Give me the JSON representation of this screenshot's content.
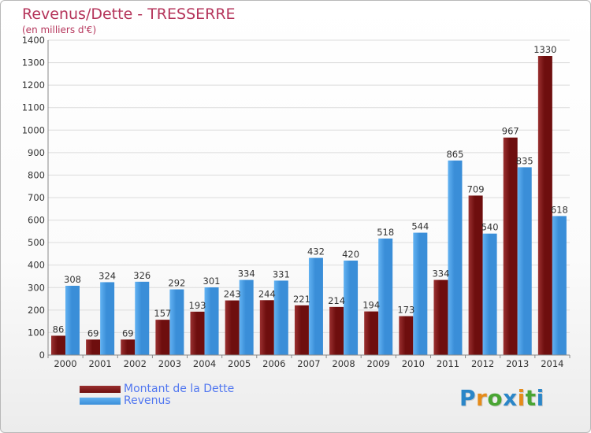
{
  "header": {
    "title": "Revenus/Dette - TRESSERRE",
    "subtitle": "(en milliers d'€)"
  },
  "colors": {
    "debt": "#6e0e0e",
    "debt_light": "#9a3030",
    "revenue": "#3a8ed8",
    "revenue_light": "#62b2f2",
    "title": "#b5355b",
    "legend_text": "#5177f0",
    "grid": "#dcdcdc",
    "axis_text": "#333333"
  },
  "chart_data": {
    "type": "bar",
    "title": "Revenus/Dette - TRESSERRE",
    "ylabel": "(en milliers d'€)",
    "xlabel": "",
    "ylim": [
      0,
      1400
    ],
    "ytick_step": 100,
    "yticks": [
      "0",
      "100",
      "200",
      "300",
      "400",
      "500",
      "600",
      "700",
      "800",
      "900",
      "1000",
      "1100",
      "1200",
      "1300",
      "1400"
    ],
    "grid": true,
    "legend_position": "bottom-left",
    "categories": [
      "2000",
      "2001",
      "2002",
      "2003",
      "2004",
      "2005",
      "2006",
      "2007",
      "2008",
      "2009",
      "2010",
      "2011",
      "2012",
      "2013",
      "2014"
    ],
    "series": [
      {
        "name": "Montant de la Dette",
        "values": [
          86,
          69,
          69,
          157,
          193,
          243,
          244,
          221,
          214,
          194,
          173,
          334,
          709,
          967,
          1330
        ],
        "labels": [
          "86",
          "69",
          "69",
          "157",
          "193",
          "243",
          "244",
          "221",
          "214",
          "194",
          "173",
          "334",
          "709",
          "967",
          "1330"
        ]
      },
      {
        "name": "Revenus",
        "values": [
          308,
          324,
          326,
          292,
          301,
          334,
          331,
          432,
          420,
          518,
          544,
          865,
          540,
          835,
          618
        ],
        "labels": [
          "308",
          "324",
          "326",
          "292",
          "301",
          "334",
          "331",
          "432",
          "420",
          "518",
          "544",
          "865",
          "540",
          "835",
          "618"
        ]
      }
    ]
  },
  "legend": {
    "items": [
      {
        "label": "Montant de la Dette"
      },
      {
        "label": "Revenus"
      }
    ]
  },
  "logo": {
    "letters": [
      "P",
      "r",
      "o",
      "x",
      "i",
      "t",
      "i"
    ],
    "colors": [
      "#2b86c8",
      "#e58b1a",
      "#49a533",
      "#2b86c8",
      "#e58b1a",
      "#49a533",
      "#2b86c8"
    ]
  }
}
